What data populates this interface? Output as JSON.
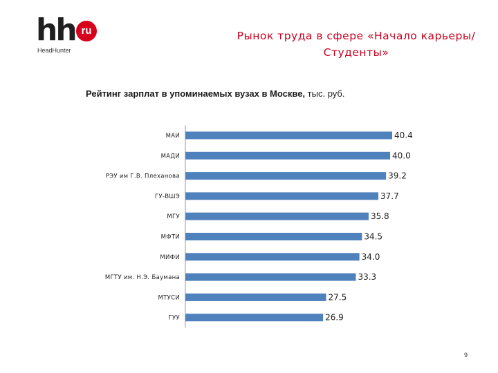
{
  "logo": {
    "mark": "hh",
    "badge": "ru",
    "subtitle": "HeadHunter"
  },
  "slide_title": "Рынок труда в сфере «Начало карьеры/Студенты»",
  "chart_title_bold": "Рейтинг зарплат в упоминаемых вузах в Москве,",
  "chart_title_unit": "тыс. руб.",
  "page_number": "9",
  "colors": {
    "bar": "#4f81bd",
    "title": "#c8001e",
    "logo_badge": "#d6001c"
  },
  "chart_data": {
    "type": "bar",
    "orientation": "horizontal",
    "title": "Рейтинг зарплат в упоминаемых вузах в Москве, тыс. руб.",
    "categories": [
      "МАИ",
      "МАДИ",
      "РЭУ им Г.В. Плеханова",
      "ГУ-ВШЭ",
      "МГУ",
      "МФТИ",
      "МИФИ",
      "МГТУ им. Н.Э. Баумана",
      "МТУСИ",
      "ГУУ"
    ],
    "values": [
      40.4,
      40.0,
      39.2,
      37.7,
      35.8,
      34.5,
      34.0,
      33.3,
      27.5,
      26.9
    ],
    "value_labels": [
      "40.4",
      "40.0",
      "39.2",
      "37.7",
      "35.8",
      "34.5",
      "34.0",
      "33.3",
      "27.5",
      "26.9"
    ],
    "xlim": [
      0,
      40.4
    ],
    "grid": false,
    "legend": "none"
  }
}
